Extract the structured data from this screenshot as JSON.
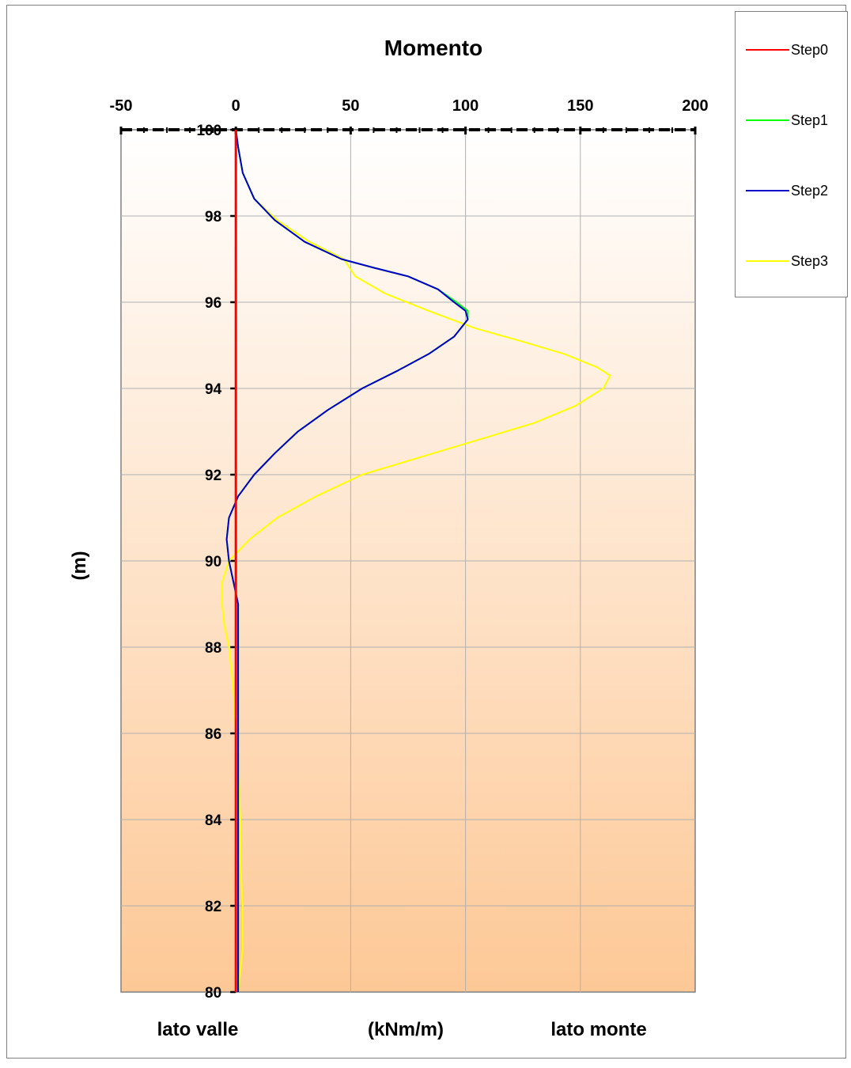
{
  "chart_data": {
    "type": "line",
    "title": "Momento",
    "xlabel": "(kNm/m)",
    "ylabel": "(m)",
    "bottom_left_label": "lato valle",
    "bottom_right_label": "lato monte",
    "xlim": [
      -50,
      200
    ],
    "ylim": [
      80,
      100
    ],
    "x_ticks": [
      -50,
      0,
      50,
      100,
      150,
      200
    ],
    "y_ticks": [
      80,
      82,
      84,
      86,
      88,
      90,
      92,
      94,
      96,
      98,
      100
    ],
    "x_axis_position": "top",
    "grid": true,
    "legend_position": "top-right",
    "series": [
      {
        "name": "Step0",
        "color": "#ff0000",
        "points": [
          [
            0,
            100
          ],
          [
            0,
            98
          ],
          [
            0,
            96
          ],
          [
            0,
            94
          ],
          [
            0,
            92
          ],
          [
            0,
            90
          ],
          [
            0,
            88
          ],
          [
            0,
            86
          ],
          [
            0,
            84
          ],
          [
            0,
            82
          ],
          [
            0,
            80
          ]
        ]
      },
      {
        "name": "Step1",
        "color": "#00ff00",
        "points": [
          [
            0,
            100
          ],
          [
            1,
            99.6
          ],
          [
            3,
            99
          ],
          [
            8,
            98.4
          ],
          [
            17,
            97.9
          ],
          [
            30,
            97.4
          ],
          [
            46,
            97
          ],
          [
            60,
            96.8
          ],
          [
            75,
            96.6
          ],
          [
            88,
            96.3
          ],
          [
            96,
            96
          ],
          [
            101,
            95.8
          ],
          [
            101,
            95.6
          ],
          [
            95,
            95.2
          ],
          [
            84,
            94.8
          ],
          [
            70,
            94.4
          ],
          [
            55,
            94
          ],
          [
            40,
            93.5
          ],
          [
            27,
            93
          ],
          [
            17,
            92.5
          ],
          [
            8,
            92
          ],
          [
            1,
            91.5
          ],
          [
            -3,
            91
          ],
          [
            -4,
            90.5
          ],
          [
            -3,
            90
          ],
          [
            -1,
            89.5
          ],
          [
            1,
            89
          ],
          [
            1,
            88
          ],
          [
            1,
            86
          ],
          [
            1,
            84
          ],
          [
            1,
            82
          ],
          [
            1,
            80
          ]
        ]
      },
      {
        "name": "Step2",
        "color": "#0000c8",
        "points": [
          [
            0,
            100
          ],
          [
            1,
            99.6
          ],
          [
            3,
            99
          ],
          [
            8,
            98.4
          ],
          [
            17,
            97.9
          ],
          [
            30,
            97.4
          ],
          [
            46,
            97
          ],
          [
            60,
            96.8
          ],
          [
            75,
            96.6
          ],
          [
            88,
            96.3
          ],
          [
            95,
            96
          ],
          [
            100,
            95.8
          ],
          [
            101,
            95.6
          ],
          [
            95,
            95.2
          ],
          [
            84,
            94.8
          ],
          [
            70,
            94.4
          ],
          [
            55,
            94
          ],
          [
            40,
            93.5
          ],
          [
            27,
            93
          ],
          [
            17,
            92.5
          ],
          [
            8,
            92
          ],
          [
            1,
            91.5
          ],
          [
            -3,
            91
          ],
          [
            -4,
            90.5
          ],
          [
            -3,
            90
          ],
          [
            -1,
            89.5
          ],
          [
            1,
            89
          ],
          [
            1,
            88
          ],
          [
            1,
            86
          ],
          [
            1,
            84
          ],
          [
            1,
            82
          ],
          [
            1,
            80
          ]
        ]
      },
      {
        "name": "Step3",
        "color": "#ffff00",
        "points": [
          [
            0,
            100
          ],
          [
            1,
            99.6
          ],
          [
            3,
            99
          ],
          [
            8,
            98.4
          ],
          [
            18,
            97.9
          ],
          [
            32,
            97.4
          ],
          [
            47,
            97
          ],
          [
            52,
            96.6
          ],
          [
            65,
            96.2
          ],
          [
            84,
            95.8
          ],
          [
            104,
            95.4
          ],
          [
            124,
            95.1
          ],
          [
            143,
            94.8
          ],
          [
            157,
            94.5
          ],
          [
            163,
            94.3
          ],
          [
            160,
            94
          ],
          [
            148,
            93.6
          ],
          [
            130,
            93.2
          ],
          [
            105,
            92.8
          ],
          [
            80,
            92.4
          ],
          [
            55,
            92
          ],
          [
            35,
            91.5
          ],
          [
            18,
            91
          ],
          [
            6,
            90.5
          ],
          [
            -3,
            90
          ],
          [
            -6,
            89.5
          ],
          [
            -6,
            89
          ],
          [
            -5,
            88.5
          ],
          [
            -3,
            88
          ],
          [
            -1,
            87
          ],
          [
            0,
            86
          ],
          [
            1,
            85
          ],
          [
            2,
            84
          ],
          [
            2,
            83
          ],
          [
            3,
            82
          ],
          [
            3,
            81
          ],
          [
            1,
            80
          ]
        ]
      }
    ]
  }
}
